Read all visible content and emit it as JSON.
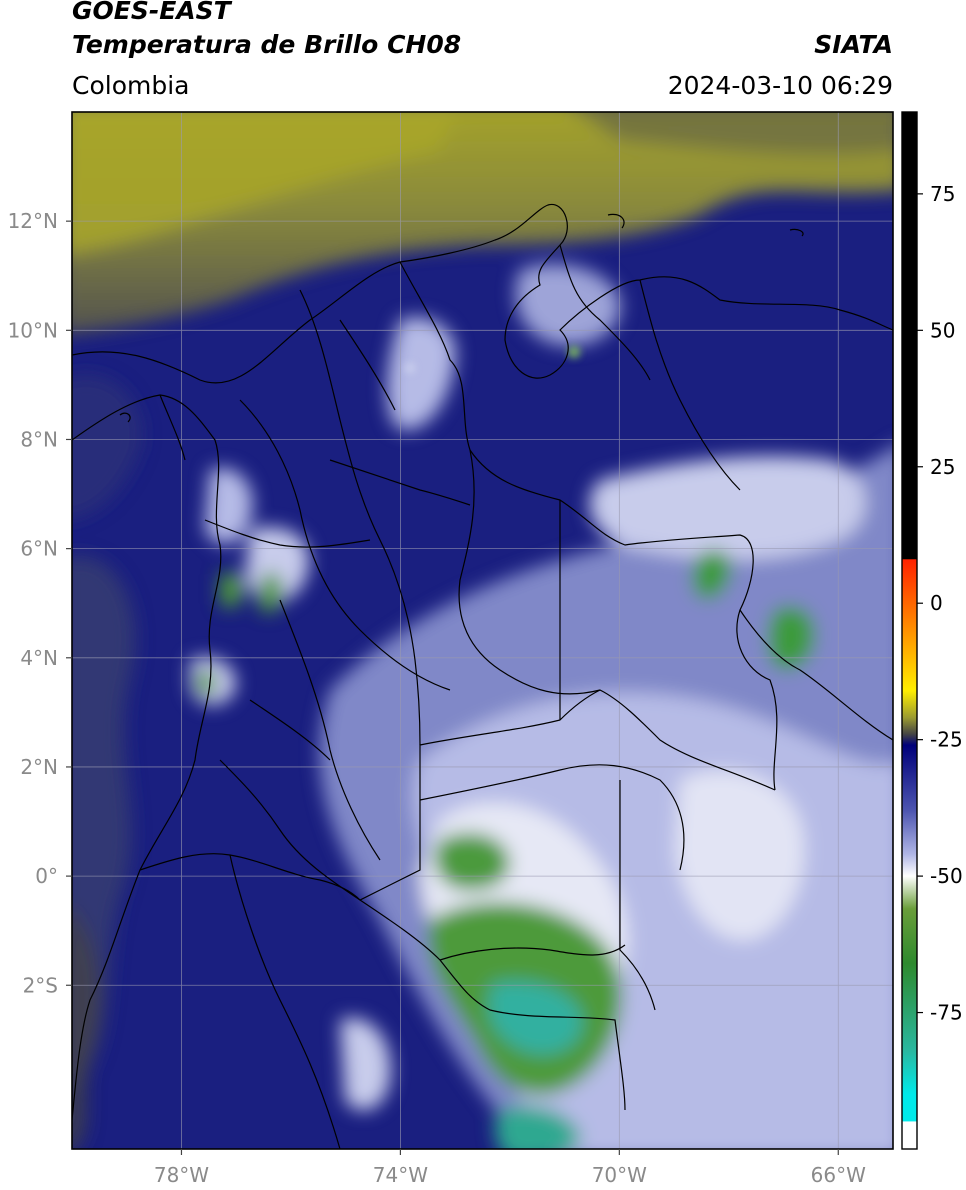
{
  "header": {
    "satellite": "GOES-EAST",
    "product": "Temperatura de Brillo CH08",
    "region": "Colombia",
    "brand": "SIATA",
    "timestamp": "2024-03-10 06:29"
  },
  "map": {
    "lon_range": [
      -80.0,
      -65.0
    ],
    "lat_range": [
      -5.0,
      14.0
    ],
    "gridlines": true,
    "lon_ticks": [
      {
        "value": -78,
        "label": "78°W"
      },
      {
        "value": -74,
        "label": "74°W"
      },
      {
        "value": -70,
        "label": "70°W"
      },
      {
        "value": -66,
        "label": "66°W"
      }
    ],
    "lat_ticks": [
      {
        "value": 12,
        "label": "12°N"
      },
      {
        "value": 10,
        "label": "10°N"
      },
      {
        "value": 8,
        "label": "8°N"
      },
      {
        "value": 6,
        "label": "6°N"
      },
      {
        "value": 4,
        "label": "4°N"
      },
      {
        "value": 2,
        "label": "2°N"
      },
      {
        "value": 0,
        "label": "0°"
      },
      {
        "value": -2,
        "label": "2°S"
      }
    ]
  },
  "colorbar": {
    "range": [
      -100,
      90
    ],
    "placement": "right",
    "ticks": [
      {
        "value": 75,
        "label": "75"
      },
      {
        "value": 50,
        "label": "50"
      },
      {
        "value": 25,
        "label": "25"
      },
      {
        "value": 0,
        "label": "0"
      },
      {
        "value": -25,
        "label": "-25"
      },
      {
        "value": -50,
        "label": "-50"
      },
      {
        "value": -75,
        "label": "-75"
      }
    ],
    "stops": [
      {
        "value": 90,
        "color": "#000000"
      },
      {
        "value": 8.1,
        "color": "#000000"
      },
      {
        "value": 8,
        "color": "#ff2200"
      },
      {
        "value": -6,
        "color": "#ff9900"
      },
      {
        "value": -16,
        "color": "#ffee00"
      },
      {
        "value": -21,
        "color": "#9a9a30"
      },
      {
        "value": -24,
        "color": "#444444"
      },
      {
        "value": -26,
        "color": "#00007a"
      },
      {
        "value": -38,
        "color": "#4d55b0"
      },
      {
        "value": -46,
        "color": "#b0b6e6"
      },
      {
        "value": -50,
        "color": "#ffffff"
      },
      {
        "value": -56,
        "color": "#6a9e3a"
      },
      {
        "value": -66,
        "color": "#2e8a2e"
      },
      {
        "value": -82,
        "color": "#2ab8a0"
      },
      {
        "value": -90,
        "color": "#00eaea"
      },
      {
        "value": -94.9,
        "color": "#00eaea"
      },
      {
        "value": -95,
        "color": "#ffffff"
      },
      {
        "value": -100,
        "color": "#ffffff"
      }
    ]
  }
}
